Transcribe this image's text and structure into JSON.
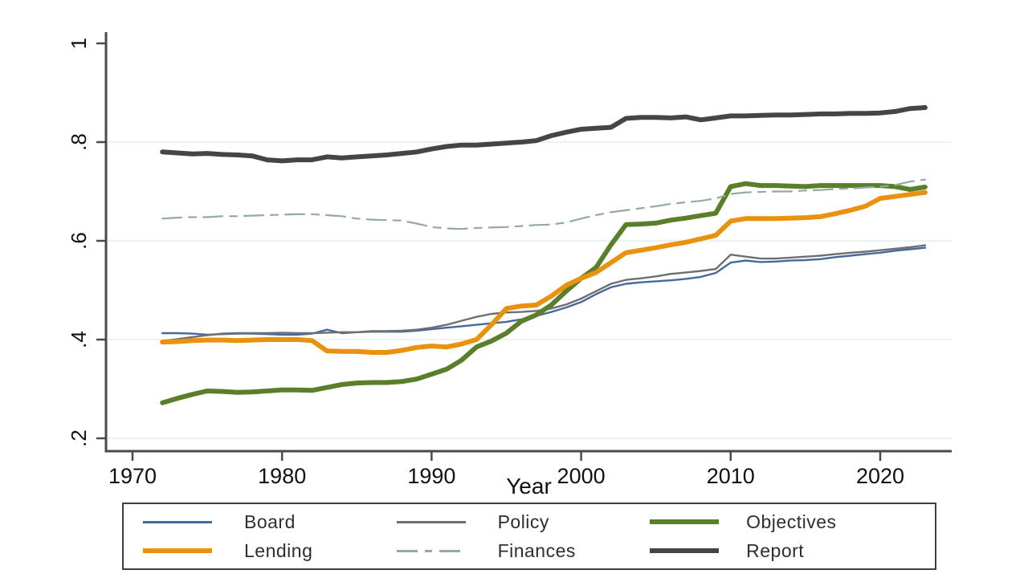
{
  "figure": {
    "xlabel": "Year",
    "background": "#ffffff",
    "axis_color": "#4a4a4a",
    "grid_color": "#e4edee",
    "tick_label_color": "#111111"
  },
  "chart_data": {
    "type": "line",
    "title": "",
    "xlabel": "Year",
    "ylabel": "",
    "xlim": [
      1968,
      2025
    ],
    "ylim": [
      0.2,
      1.0
    ],
    "grid": true,
    "legend_position": "bottom",
    "x_ticks": [
      1970,
      1980,
      1990,
      2000,
      2010,
      2020
    ],
    "y_ticks": [
      {
        "value": 0.2,
        "label": ".2"
      },
      {
        "value": 0.4,
        "label": ".4"
      },
      {
        "value": 0.6,
        "label": ".6"
      },
      {
        "value": 0.8,
        "label": ".8"
      },
      {
        "value": 1.0,
        "label": "1"
      }
    ],
    "x": [
      1972,
      1973,
      1974,
      1975,
      1976,
      1977,
      1978,
      1979,
      1980,
      1981,
      1982,
      1983,
      1984,
      1985,
      1986,
      1987,
      1988,
      1989,
      1990,
      1991,
      1992,
      1993,
      1994,
      1995,
      1996,
      1997,
      1998,
      1999,
      2000,
      2001,
      2002,
      2003,
      2004,
      2005,
      2006,
      2007,
      2008,
      2009,
      2010,
      2011,
      2012,
      2013,
      2014,
      2015,
      2016,
      2017,
      2018,
      2019,
      2020,
      2021,
      2022,
      2023
    ],
    "series": [
      {
        "name": "Board",
        "color": "#46699b",
        "width": 2.4,
        "dash": "",
        "values": [
          0.413,
          0.413,
          0.412,
          0.41,
          0.411,
          0.412,
          0.412,
          0.411,
          0.41,
          0.41,
          0.412,
          0.42,
          0.413,
          0.415,
          0.416,
          0.416,
          0.416,
          0.418,
          0.421,
          0.424,
          0.427,
          0.43,
          0.433,
          0.436,
          0.441,
          0.448,
          0.456,
          0.465,
          0.476,
          0.492,
          0.506,
          0.513,
          0.516,
          0.518,
          0.52,
          0.523,
          0.527,
          0.535,
          0.556,
          0.56,
          0.557,
          0.558,
          0.56,
          0.561,
          0.563,
          0.567,
          0.57,
          0.573,
          0.576,
          0.58,
          0.583,
          0.586
        ]
      },
      {
        "name": "Policy",
        "color": "#6f6f6f",
        "width": 2.4,
        "dash": "",
        "values": [
          0.397,
          0.401,
          0.405,
          0.409,
          0.412,
          0.413,
          0.413,
          0.413,
          0.414,
          0.413,
          0.413,
          0.414,
          0.415,
          0.415,
          0.417,
          0.417,
          0.418,
          0.42,
          0.424,
          0.43,
          0.438,
          0.446,
          0.452,
          0.455,
          0.456,
          0.458,
          0.463,
          0.471,
          0.483,
          0.498,
          0.513,
          0.521,
          0.524,
          0.528,
          0.533,
          0.536,
          0.539,
          0.543,
          0.572,
          0.568,
          0.564,
          0.564,
          0.566,
          0.568,
          0.57,
          0.573,
          0.576,
          0.578,
          0.581,
          0.584,
          0.587,
          0.591
        ]
      },
      {
        "name": "Objectives",
        "color": "#5b7e2a",
        "width": 6,
        "dash": "",
        "values": [
          0.272,
          0.281,
          0.289,
          0.296,
          0.295,
          0.293,
          0.294,
          0.296,
          0.298,
          0.298,
          0.297,
          0.303,
          0.309,
          0.312,
          0.313,
          0.313,
          0.315,
          0.32,
          0.33,
          0.34,
          0.358,
          0.385,
          0.397,
          0.413,
          0.437,
          0.45,
          0.47,
          0.498,
          0.524,
          0.546,
          0.592,
          0.633,
          0.634,
          0.636,
          0.642,
          0.646,
          0.651,
          0.656,
          0.71,
          0.716,
          0.712,
          0.712,
          0.711,
          0.71,
          0.712,
          0.712,
          0.712,
          0.712,
          0.712,
          0.71,
          0.704,
          0.709
        ]
      },
      {
        "name": "Lending",
        "color": "#e9920f",
        "width": 6,
        "dash": "",
        "values": [
          0.395,
          0.396,
          0.398,
          0.399,
          0.399,
          0.398,
          0.399,
          0.4,
          0.4,
          0.4,
          0.398,
          0.377,
          0.376,
          0.376,
          0.374,
          0.374,
          0.378,
          0.384,
          0.387,
          0.385,
          0.391,
          0.4,
          0.43,
          0.463,
          0.468,
          0.47,
          0.488,
          0.51,
          0.524,
          0.536,
          0.556,
          0.576,
          0.581,
          0.586,
          0.592,
          0.597,
          0.604,
          0.611,
          0.64,
          0.645,
          0.645,
          0.645,
          0.646,
          0.647,
          0.649,
          0.655,
          0.662,
          0.67,
          0.686,
          0.69,
          0.694,
          0.698
        ]
      },
      {
        "name": "Finances",
        "color": "#93a9a1",
        "width": 2.2,
        "dash": "24 9 9 9",
        "values": [
          0.645,
          0.647,
          0.648,
          0.648,
          0.65,
          0.65,
          0.651,
          0.652,
          0.653,
          0.654,
          0.654,
          0.652,
          0.65,
          0.645,
          0.643,
          0.642,
          0.641,
          0.635,
          0.628,
          0.625,
          0.624,
          0.626,
          0.627,
          0.628,
          0.63,
          0.632,
          0.633,
          0.637,
          0.645,
          0.652,
          0.658,
          0.662,
          0.666,
          0.67,
          0.675,
          0.678,
          0.681,
          0.686,
          0.695,
          0.698,
          0.699,
          0.7,
          0.7,
          0.702,
          0.703,
          0.705,
          0.706,
          0.708,
          0.71,
          0.713,
          0.72,
          0.724
        ]
      },
      {
        "name": "Report",
        "color": "#454545",
        "width": 6,
        "dash": "",
        "values": [
          0.78,
          0.778,
          0.776,
          0.777,
          0.775,
          0.774,
          0.772,
          0.764,
          0.762,
          0.764,
          0.764,
          0.77,
          0.768,
          0.77,
          0.772,
          0.774,
          0.777,
          0.78,
          0.786,
          0.791,
          0.794,
          0.794,
          0.796,
          0.798,
          0.8,
          0.803,
          0.813,
          0.82,
          0.826,
          0.828,
          0.83,
          0.848,
          0.85,
          0.85,
          0.849,
          0.851,
          0.845,
          0.849,
          0.853,
          0.853,
          0.854,
          0.855,
          0.855,
          0.856,
          0.857,
          0.857,
          0.858,
          0.858,
          0.859,
          0.862,
          0.868,
          0.87
        ]
      }
    ]
  },
  "legend": {
    "items": [
      {
        "label": "Board"
      },
      {
        "label": "Policy"
      },
      {
        "label": "Objectives"
      },
      {
        "label": "Lending"
      },
      {
        "label": "Finances"
      },
      {
        "label": "Report"
      }
    ]
  }
}
